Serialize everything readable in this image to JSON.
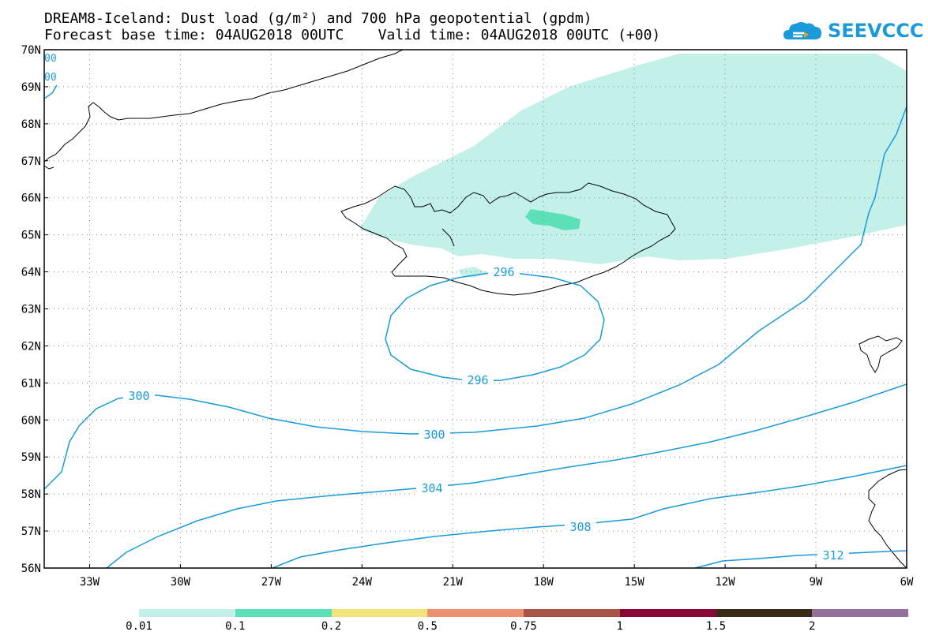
{
  "header": {
    "title_line1": "DREAM8-Iceland: Dust load (g/m²) and 700 hPa geopotential (gpdm)",
    "title_line2": "Forecast base time: 04AUG2018 00UTC    Valid time: 04AUG2018 00UTC (+00)",
    "logo_text": "SEEVCCC"
  },
  "map": {
    "lon_range": [
      -34.5,
      -6
    ],
    "lat_range": [
      56,
      70
    ],
    "lat_labels": [
      "70N",
      "69N",
      "68N",
      "67N",
      "66N",
      "65N",
      "64N",
      "63N",
      "62N",
      "61N",
      "60N",
      "59N",
      "58N",
      "57N",
      "56N"
    ],
    "lon_labels": [
      "33W",
      "30W",
      "27W",
      "24W",
      "21W",
      "18W",
      "15W",
      "12W",
      "9W",
      "6W"
    ],
    "grid": "dotted",
    "dust_fill_colors": [
      "#c4f0ea",
      "#5ce0b8"
    ],
    "contour_color": "#1a9ad9",
    "contour_labels": [
      {
        "text": "296"
      },
      {
        "text": "296"
      },
      {
        "text": "300"
      },
      {
        "text": "300"
      },
      {
        "text": "304"
      },
      {
        "text": "308"
      },
      {
        "text": "312"
      }
    ]
  },
  "colorbar": {
    "colors": [
      "#c4f0ea",
      "#5ce0b8",
      "#f2e47a",
      "#ec9070",
      "#a85446",
      "#8a0838",
      "#3a2a18",
      "#96709c"
    ],
    "labels": [
      "0.01",
      "0.1",
      "0.2",
      "0.5",
      "0.75",
      "1",
      "1.5",
      "2"
    ]
  }
}
